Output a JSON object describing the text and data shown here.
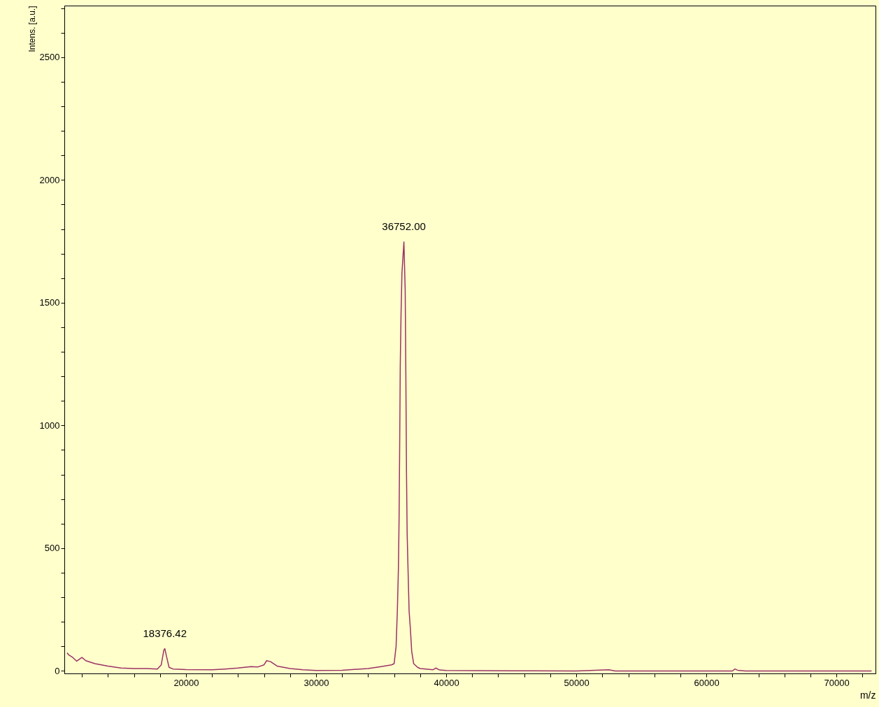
{
  "chart_data": {
    "type": "line",
    "xlabel": "m/z",
    "ylabel": "Intens. [a.u.]",
    "x": [
      10860,
      11000,
      11300,
      11600,
      12000,
      12300,
      13000,
      14000,
      15000,
      16000,
      17000,
      17800,
      18100,
      18300,
      18376.42,
      18500,
      18700,
      19000,
      20000,
      22000,
      23000,
      24000,
      25000,
      25500,
      26000,
      26200,
      26500,
      27000,
      28000,
      29000,
      30000,
      32000,
      34000,
      35000,
      35800,
      36000,
      36150,
      36250,
      36330,
      36380,
      36430,
      36470,
      36530,
      36600,
      36752,
      36850,
      36900,
      36950,
      37000,
      37080,
      37150,
      37250,
      37350,
      37500,
      37800,
      38000,
      39000,
      39200,
      39500,
      40000,
      45000,
      50000,
      52500,
      53000,
      62000,
      62200,
      62400,
      63000,
      72700
    ],
    "series": [
      {
        "color": "#9b3366",
        "values": [
          74,
          65,
          55,
          40,
          55,
          42,
          30,
          20,
          12,
          10,
          10,
          8,
          25,
          85,
          91,
          60,
          15,
          8,
          6,
          5,
          8,
          12,
          18,
          16,
          25,
          42,
          38,
          20,
          10,
          5,
          2,
          3,
          10,
          18,
          25,
          30,
          100,
          250,
          420,
          620,
          940,
          1240,
          1450,
          1620,
          1747,
          1550,
          1210,
          810,
          560,
          390,
          245,
          170,
          80,
          30,
          15,
          10,
          5,
          12,
          4,
          2,
          1,
          0,
          5,
          0,
          0,
          8,
          3,
          0,
          0
        ]
      }
    ],
    "annotations": [
      {
        "text": "18376.42",
        "x": 18376.42,
        "y": 91
      },
      {
        "text": "36752.00",
        "x": 36752,
        "y": 1747
      }
    ],
    "xlim": [
      10650,
      73000
    ],
    "ylim": [
      -10,
      2710
    ],
    "xticks": [
      {
        "value": 12000,
        "label": null
      },
      {
        "value": 14000,
        "label": null
      },
      {
        "value": 16000,
        "label": null
      },
      {
        "value": 18000,
        "label": null
      },
      20000,
      {
        "value": 22000,
        "label": null
      },
      {
        "value": 24000,
        "label": null
      },
      {
        "value": 26000,
        "label": null
      },
      {
        "value": 28000,
        "label": null
      },
      30000,
      {
        "value": 32000,
        "label": null
      },
      {
        "value": 34000,
        "label": null
      },
      {
        "value": 36000,
        "label": null
      },
      {
        "value": 38000,
        "label": null
      },
      40000,
      {
        "value": 42000,
        "label": null
      },
      {
        "value": 44000,
        "label": null
      },
      {
        "value": 46000,
        "label": null
      },
      {
        "value": 48000,
        "label": null
      },
      50000,
      {
        "value": 52000,
        "label": null
      },
      {
        "value": 54000,
        "label": null
      },
      {
        "value": 56000,
        "label": null
      },
      {
        "value": 58000,
        "label": null
      },
      60000,
      {
        "value": 62000,
        "label": null
      },
      {
        "value": 64000,
        "label": null
      },
      {
        "value": 66000,
        "label": null
      },
      {
        "value": 68000,
        "label": null
      },
      70000,
      {
        "value": 72000,
        "label": null
      }
    ],
    "yticks": [
      0,
      {
        "value": 100,
        "label": null
      },
      {
        "value": 200,
        "label": null
      },
      {
        "value": 300,
        "label": null
      },
      {
        "value": 400,
        "label": null
      },
      500,
      {
        "value": 600,
        "label": null
      },
      {
        "value": 700,
        "label": null
      },
      {
        "value": 800,
        "label": null
      },
      {
        "value": 900,
        "label": null
      },
      1000,
      {
        "value": 1100,
        "label": null
      },
      {
        "value": 1200,
        "label": null
      },
      {
        "value": 1300,
        "label": null
      },
      {
        "value": 1400,
        "label": null
      },
      1500,
      {
        "value": 1600,
        "label": null
      },
      {
        "value": 1700,
        "label": null
      },
      {
        "value": 1800,
        "label": null
      },
      {
        "value": 1900,
        "label": null
      },
      2000,
      {
        "value": 2100,
        "label": null
      },
      {
        "value": 2200,
        "label": null
      },
      {
        "value": 2300,
        "label": null
      },
      {
        "value": 2400,
        "label": null
      },
      2500,
      {
        "value": 2600,
        "label": null
      },
      {
        "value": 2700,
        "label": null
      }
    ],
    "grid": false,
    "marker": "none",
    "line_style": "solid"
  }
}
